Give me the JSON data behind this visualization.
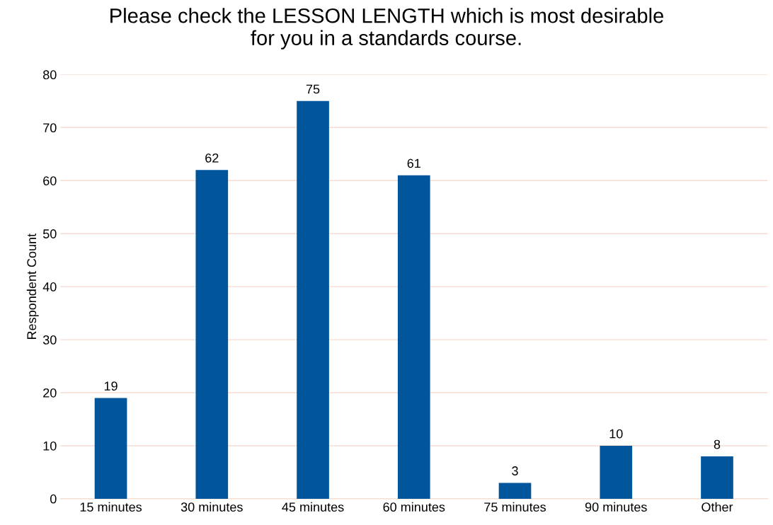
{
  "chart_data": {
    "type": "bar",
    "title": "Please check the LESSON LENGTH which is most desirable\nfor you in a standards course.",
    "ylabel": "Respondent Count",
    "categories": [
      "15 minutes",
      "30 minutes",
      "45 minutes",
      "60 minutes",
      "75 minutes",
      "90 minutes",
      "Other"
    ],
    "values": [
      19,
      62,
      75,
      61,
      3,
      10,
      8
    ],
    "color": "#00559b",
    "ylim": [
      0,
      80
    ],
    "yticks": [
      0,
      10,
      20,
      30,
      40,
      50,
      60,
      70,
      80
    ],
    "grid": "y",
    "data_labels": true
  }
}
